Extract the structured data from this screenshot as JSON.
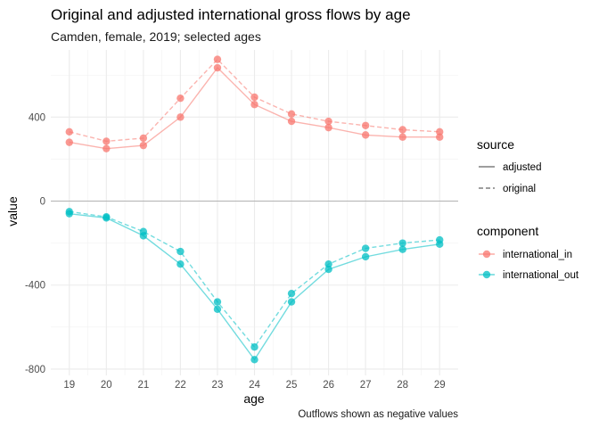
{
  "chart_data": {
    "type": "line",
    "title": "Original and adjusted international gross flows by age",
    "subtitle": "Camden, female, 2019; selected ages",
    "caption": "Outflows shown as negative values",
    "xlabel": "age",
    "ylabel": "value",
    "x": [
      19,
      20,
      21,
      22,
      23,
      24,
      25,
      26,
      27,
      28,
      29
    ],
    "xlim": [
      18.5,
      29.5
    ],
    "ylim": [
      -830,
      720
    ],
    "yticks": [
      -800,
      -400,
      0,
      400
    ],
    "grid": true,
    "legend_position": "right",
    "legends": [
      {
        "title": "source",
        "entries": [
          {
            "label": "adjusted",
            "linetype": "solid"
          },
          {
            "label": "original",
            "linetype": "dashed"
          }
        ]
      },
      {
        "title": "component",
        "entries": [
          {
            "label": "international_in",
            "color": "#F8766D"
          },
          {
            "label": "international_out",
            "color": "#00BFC4"
          }
        ]
      }
    ],
    "series": [
      {
        "name": "international_in",
        "source": "adjusted",
        "color": "#F8766D",
        "linetype": "solid",
        "values": [
          280,
          250,
          265,
          400,
          635,
          460,
          380,
          350,
          315,
          305,
          305
        ]
      },
      {
        "name": "international_in",
        "source": "original",
        "color": "#F8766D",
        "linetype": "dashed",
        "values": [
          330,
          285,
          300,
          490,
          675,
          495,
          415,
          380,
          360,
          340,
          330
        ]
      },
      {
        "name": "international_out",
        "source": "adjusted",
        "color": "#00BFC4",
        "linetype": "solid",
        "values": [
          -60,
          -80,
          -165,
          -300,
          -515,
          -755,
          -480,
          -325,
          -265,
          -230,
          -205
        ]
      },
      {
        "name": "international_out",
        "source": "original",
        "color": "#00BFC4",
        "linetype": "dashed",
        "values": [
          -50,
          -75,
          -145,
          -240,
          -480,
          -695,
          -440,
          -300,
          -225,
          -200,
          -185
        ]
      }
    ]
  }
}
